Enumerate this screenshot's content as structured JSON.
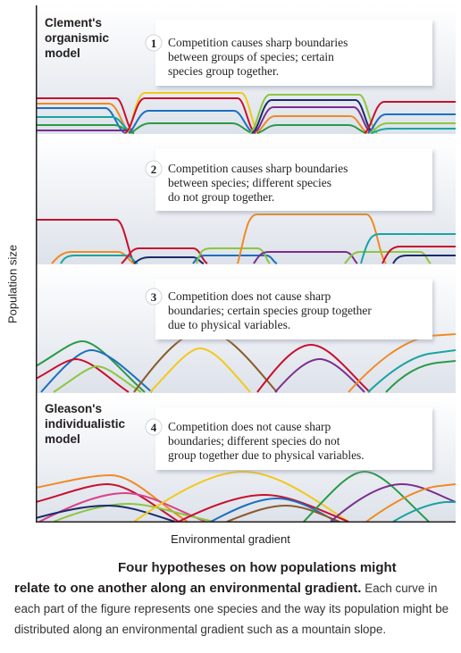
{
  "axis": {
    "ylabel": "Population size",
    "xlabel": "Environmental gradient"
  },
  "panels": [
    {
      "number": "1",
      "model_label": [
        "Clement's",
        "organismic",
        "model"
      ],
      "text": [
        "Competition causes sharp boundaries",
        "between groups of species; certain",
        "species group together."
      ]
    },
    {
      "number": "2",
      "model_label": [],
      "text": [
        "Competition causes sharp boundaries",
        "between species; different species",
        "do not group together."
      ]
    },
    {
      "number": "3",
      "model_label": [],
      "text": [
        "Competition does not cause sharp",
        "boundaries; certain species group together",
        "due to physical variables."
      ]
    },
    {
      "number": "4",
      "model_label": [
        "Gleason's",
        "individualistic",
        "model"
      ],
      "text": [
        "Competition does not cause sharp",
        "boundaries; different species do not",
        "group together due to physical variables."
      ]
    }
  ],
  "caption": {
    "title_line1": "Four hypotheses on how populations might",
    "title_line2": "relate to one another along an environmental gradient.",
    "body": "Each curve in each part of the figure represents one species and the way its population might be distributed along an environmental gradient such as a mountain slope."
  },
  "colors": {
    "red": "#c8102e",
    "orange": "#f08a24",
    "blue": "#1d6fbf",
    "green": "#2a9a48",
    "teal": "#1aa3a3",
    "yellow": "#f3c81a",
    "purple": "#7a2e8e",
    "navy": "#1b2a6b",
    "lime": "#8cc63f",
    "brown": "#8a5a2b",
    "pink": "#d8448a",
    "panel_bg": "#e3e7ee",
    "box_bg": "#ffffff"
  }
}
